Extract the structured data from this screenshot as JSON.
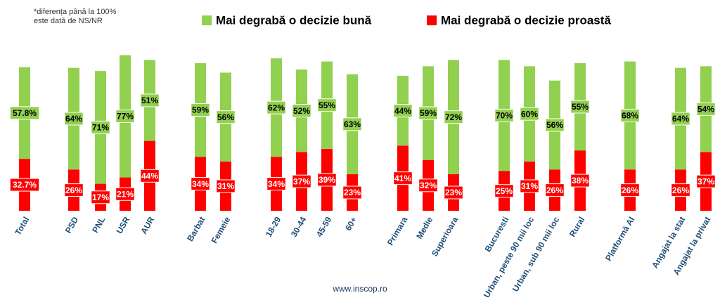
{
  "chart_data": {
    "type": "stacked_bar",
    "note": [
      "*diferența până la 100%",
      "este dată de NS/NR"
    ],
    "footer": "www.inscop.ro",
    "categories": [
      "Total",
      "PSD",
      "PNL",
      "USR",
      "AUR",
      "Barbat",
      "Femeie",
      "18-29",
      "30-44",
      "45-59",
      "60+",
      "Primara",
      "Medie",
      "Superioara",
      "Bucuresti",
      "Urban, peste 90 mii loc",
      "Urban, sub 90 mii loc",
      "Rural",
      "Platformă AI",
      "Angajat la stat",
      "Angajat la privat"
    ],
    "ylim": [
      0,
      100
    ],
    "series": [
      {
        "name": "Mai degrabă o decizie bună",
        "color": "#92d050",
        "values": [
          57.8,
          64,
          71,
          77,
          51,
          59,
          56,
          62,
          52,
          55,
          63,
          44,
          59,
          72,
          70,
          60,
          56,
          55,
          68,
          64,
          54
        ],
        "value_labels": [
          "57.8%",
          "64%",
          "71%",
          "77%",
          "51%",
          "59%",
          "56%",
          "62%",
          "52%",
          "55%",
          "63%",
          "44%",
          "59%",
          "72%",
          "70%",
          "60%",
          "56%",
          "55%",
          "68%",
          "64%",
          "54%"
        ]
      },
      {
        "name": "Mai degrabă o decizie proastă",
        "color": "#ff0000",
        "values": [
          32.7,
          26,
          17,
          21,
          44,
          34,
          31,
          34,
          37,
          39,
          23,
          41,
          32,
          23,
          25,
          31,
          26,
          38,
          26,
          26,
          37
        ],
        "value_labels": [
          "32.7%",
          "26%",
          "17%",
          "21%",
          "44%",
          "34%",
          "31%",
          "34%",
          "37%",
          "39%",
          "23%",
          "41%",
          "32%",
          "23%",
          "25%",
          "31%",
          "26%",
          "38%",
          "26%",
          "26%",
          "37%"
        ]
      }
    ]
  }
}
